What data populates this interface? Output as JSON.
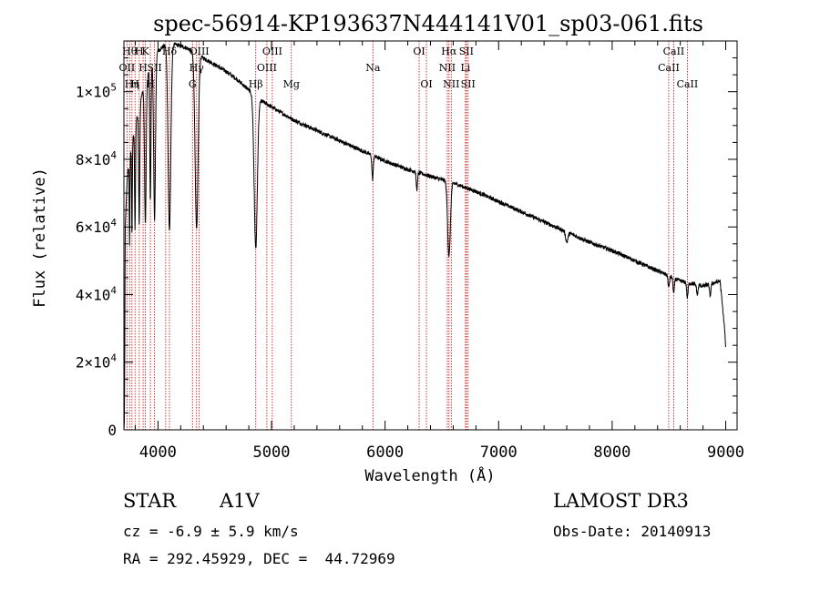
{
  "chart_data": {
    "type": "line",
    "title": "spec-56914-KP193637N444141V01_sp03-061.fits",
    "xlabel": "Wavelength (Å)",
    "ylabel": "Flux (relative)",
    "xlim": [
      3700,
      9100
    ],
    "ylim": [
      0,
      115000
    ],
    "xticks": [
      {
        "value": 4000,
        "label": "4000"
      },
      {
        "value": 5000,
        "label": "5000"
      },
      {
        "value": 6000,
        "label": "6000"
      },
      {
        "value": 7000,
        "label": "7000"
      },
      {
        "value": 8000,
        "label": "8000"
      },
      {
        "value": 9000,
        "label": "9000"
      }
    ],
    "yticks": [
      {
        "value": 0,
        "mant": "0",
        "exp": ""
      },
      {
        "value": 20000,
        "mant": "2×10",
        "exp": "4"
      },
      {
        "value": 40000,
        "mant": "4×10",
        "exp": "4"
      },
      {
        "value": 60000,
        "mant": "6×10",
        "exp": "4"
      },
      {
        "value": 80000,
        "mant": "8×10",
        "exp": "4"
      },
      {
        "value": 100000,
        "mant": "1×10",
        "exp": "5"
      }
    ],
    "continuum": [
      [
        3700,
        0
      ],
      [
        3705,
        3000
      ],
      [
        3712,
        60000
      ],
      [
        3730,
        75000
      ],
      [
        3760,
        82000
      ],
      [
        3800,
        90000
      ],
      [
        3850,
        98000
      ],
      [
        3900,
        104000
      ],
      [
        3950,
        109000
      ],
      [
        4000,
        112000
      ],
      [
        4050,
        113500
      ],
      [
        4100,
        114000
      ],
      [
        4150,
        114000
      ],
      [
        4200,
        113500
      ],
      [
        4250,
        113000
      ],
      [
        4300,
        112000
      ],
      [
        4400,
        110000
      ],
      [
        4500,
        108000
      ],
      [
        4600,
        106000
      ],
      [
        4700,
        103500
      ],
      [
        4800,
        100500
      ],
      [
        4900,
        97500
      ],
      [
        5000,
        95500
      ],
      [
        5100,
        93500
      ],
      [
        5200,
        91500
      ],
      [
        5400,
        88500
      ],
      [
        5600,
        85500
      ],
      [
        5800,
        82500
      ],
      [
        6000,
        79500
      ],
      [
        6200,
        77000
      ],
      [
        6400,
        75000
      ],
      [
        6600,
        73000
      ],
      [
        6800,
        70500
      ],
      [
        7000,
        67500
      ],
      [
        7200,
        64500
      ],
      [
        7400,
        61500
      ],
      [
        7600,
        58500
      ],
      [
        7800,
        55500
      ],
      [
        8000,
        53000
      ],
      [
        8200,
        50000
      ],
      [
        8400,
        47000
      ],
      [
        8600,
        44000
      ],
      [
        8800,
        42500
      ],
      [
        8950,
        44000
      ],
      [
        8990,
        30000
      ],
      [
        9000,
        24000
      ]
    ],
    "absorption_lines": [
      {
        "center": 3750,
        "depth": 25000,
        "width": 3
      },
      {
        "center": 3771,
        "depth": 27000,
        "width": 3
      },
      {
        "center": 3798,
        "depth": 30000,
        "width": 4
      },
      {
        "center": 3835,
        "depth": 35000,
        "width": 5
      },
      {
        "center": 3889,
        "depth": 42000,
        "width": 7
      },
      {
        "center": 3933,
        "depth": 40000,
        "width": 5
      },
      {
        "center": 3970,
        "depth": 48000,
        "width": 8
      },
      {
        "center": 4101,
        "depth": 55000,
        "width": 12
      },
      {
        "center": 4340,
        "depth": 52000,
        "width": 13
      },
      {
        "center": 4861,
        "depth": 45000,
        "width": 14
      },
      {
        "center": 5890,
        "depth": 7000,
        "width": 6
      },
      {
        "center": 6280,
        "depth": 5000,
        "width": 6
      },
      {
        "center": 6563,
        "depth": 22000,
        "width": 12
      },
      {
        "center": 7600,
        "depth": 3000,
        "width": 10
      },
      {
        "center": 8498,
        "depth": 3500,
        "width": 6
      },
      {
        "center": 8542,
        "depth": 4500,
        "width": 6
      },
      {
        "center": 8662,
        "depth": 4500,
        "width": 6
      },
      {
        "center": 8750,
        "depth": 3000,
        "width": 6
      },
      {
        "center": 8863,
        "depth": 3500,
        "width": 6
      }
    ],
    "line_markers": [
      {
        "wavelength": 3727,
        "label": "OII",
        "row": 1
      },
      {
        "wavelength": 3750,
        "label": "Hθ",
        "row": 0
      },
      {
        "wavelength": 3771,
        "label": "Hη",
        "row": 2
      },
      {
        "wavelength": 3798,
        "label": "H",
        "row": 2
      },
      {
        "wavelength": 3835,
        "label": "H",
        "row": 0
      },
      {
        "wavelength": 3869,
        "label": "H",
        "row": 1
      },
      {
        "wavelength": 3889,
        "label": "K",
        "row": 0
      },
      {
        "wavelength": 3933,
        "label": "H",
        "row": 2
      },
      {
        "wavelength": 3970,
        "label": "SII",
        "row": 1
      },
      {
        "wavelength": 4068,
        "label": "",
        "row": 0
      },
      {
        "wavelength": 4101,
        "label": "Hδ",
        "row": 0
      },
      {
        "wavelength": 4304,
        "label": "G",
        "row": 2
      },
      {
        "wavelength": 4340,
        "label": "Hγ",
        "row": 1
      },
      {
        "wavelength": 4363,
        "label": "OIII",
        "row": 0
      },
      {
        "wavelength": 4861,
        "label": "Hβ",
        "row": 2
      },
      {
        "wavelength": 4959,
        "label": "OIII",
        "row": 1
      },
      {
        "wavelength": 5007,
        "label": "OIII",
        "row": 0
      },
      {
        "wavelength": 5175,
        "label": "Mg",
        "row": 2
      },
      {
        "wavelength": 5893,
        "label": "Na",
        "row": 1
      },
      {
        "wavelength": 6300,
        "label": "OI",
        "row": 0
      },
      {
        "wavelength": 6364,
        "label": "OI",
        "row": 2
      },
      {
        "wavelength": 6548,
        "label": "NII",
        "row": 1
      },
      {
        "wavelength": 6563,
        "label": "Hα",
        "row": 0
      },
      {
        "wavelength": 6583,
        "label": "NII",
        "row": 2
      },
      {
        "wavelength": 6708,
        "label": "Li",
        "row": 1
      },
      {
        "wavelength": 6716,
        "label": "SII",
        "row": 0
      },
      {
        "wavelength": 6731,
        "label": "SII",
        "row": 2
      },
      {
        "wavelength": 8498,
        "label": "CaII",
        "row": 1
      },
      {
        "wavelength": 8542,
        "label": "CaII",
        "row": 0
      },
      {
        "wavelength": 8662,
        "label": "CaII",
        "row": 2
      }
    ]
  },
  "info": {
    "class_label": "STAR",
    "subclass": "A1V",
    "cz_text": "cz = -6.9 ± 5.9 km/s",
    "coord_text": "RA = 292.45929, DEC =  44.72969",
    "survey": "LAMOST DR3",
    "obs_date": "Obs-Date: 20140913"
  },
  "colors": {
    "spectrum": "#000000",
    "marker": "#cc0000",
    "axis": "#000000"
  }
}
